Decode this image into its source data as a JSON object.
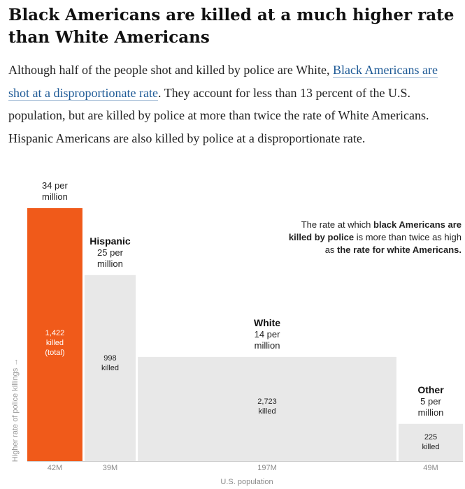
{
  "headline": "Black Americans are killed at a much higher rate than White Americans",
  "intro": {
    "text_before": "Although half of the people shot and killed by police are White, ",
    "link_text": "Black Americans are shot at a disproportionate rate",
    "text_after": ". They account for less than 13 percent of the U.S. population, but are killed by police at more than twice the rate of White Americans. Hispanic Americans are also killed by police at a disproportionate rate."
  },
  "chart_data": {
    "type": "bar",
    "subtype": "variable-width (marimekko)",
    "xlabel": "U.S. population",
    "ylabel": "Higher rate of police killings →",
    "ylim": [
      0,
      34
    ],
    "series": [
      {
        "group": "",
        "rate": 34,
        "rate_line1": "34 per",
        "rate_line2": "million",
        "population": 42,
        "population_label": "42M",
        "killed_line1": "1,422",
        "killed_line2": "killed",
        "killed_line3": "(total)",
        "color": "#f05a1a",
        "text_color": "#ffffff"
      },
      {
        "group": "Hispanic",
        "rate": 25,
        "rate_line1": "25 per",
        "rate_line2": "million",
        "population": 39,
        "population_label": "39M",
        "killed_line1": "998",
        "killed_line2": "killed",
        "color": "#e8e8e8",
        "text_color": "#222222"
      },
      {
        "group": "White",
        "rate": 14,
        "rate_line1": "14 per",
        "rate_line2": "million",
        "population": 197,
        "population_label": "197M",
        "killed_line1": "2,723",
        "killed_line2": "killed",
        "color": "#e8e8e8",
        "text_color": "#222222"
      },
      {
        "group": "Other",
        "rate": 5,
        "rate_line1": "5 per",
        "rate_line2": "million",
        "population": 49,
        "population_label": "49M",
        "killed_line1": "225",
        "killed_line2": "killed",
        "color": "#e8e8e8",
        "text_color": "#222222"
      }
    ],
    "annotation": [
      [
        {
          "t": "The rate at which ",
          "b": false
        },
        {
          "t": "black Americans are",
          "b": true
        }
      ],
      [
        {
          "t": "killed by police",
          "b": true
        },
        {
          "t": " is more than twice as high",
          "b": false
        }
      ],
      [
        {
          "t": "as ",
          "b": false
        },
        {
          "t": "the rate for white Americans.",
          "b": true
        }
      ]
    ]
  }
}
